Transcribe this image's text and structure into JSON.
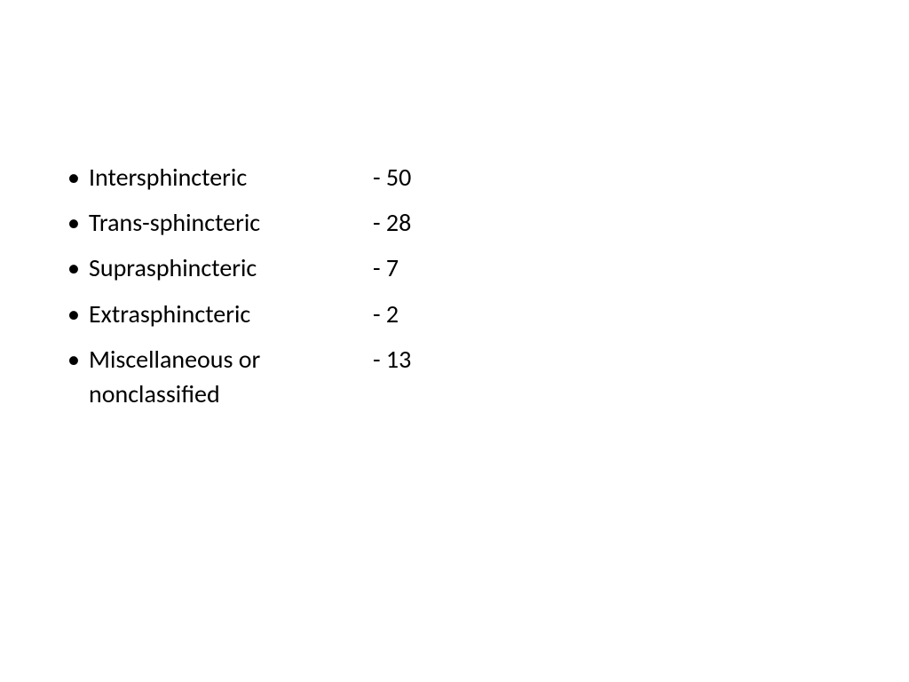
{
  "slide": {
    "background_color": "#ffffff",
    "text_color": "#000000",
    "font_family": "Calibri, Arial, sans-serif",
    "font_size_pt": 28,
    "bullet_char": "•",
    "items": [
      {
        "label": "Intersphincteric",
        "value": "-  50"
      },
      {
        "label": "Trans-sphincteric",
        "value": "-  28"
      },
      {
        "label": "Suprasphincteric",
        "value": "-  7"
      },
      {
        "label": "Extrasphincteric",
        "value": "-  2"
      },
      {
        "label": "Miscellaneous or nonclassified",
        "value": "-  13"
      }
    ]
  }
}
